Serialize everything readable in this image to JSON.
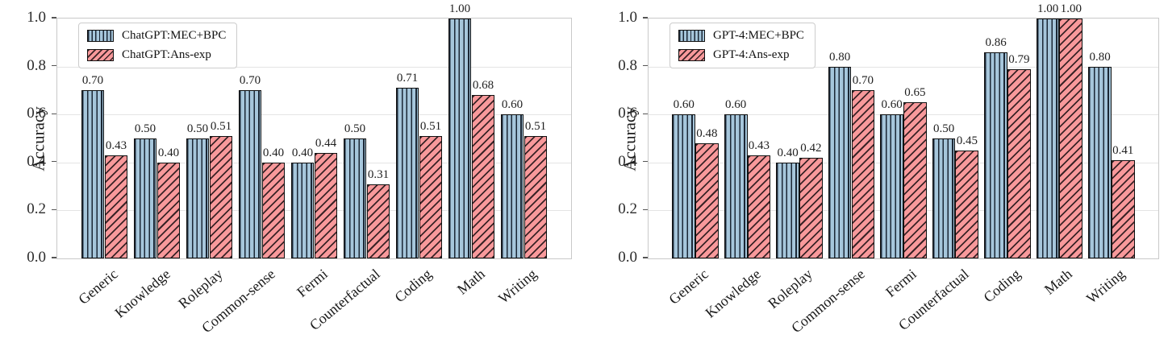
{
  "colors": {
    "series1_fill": "#a6c6db",
    "series1_hatch": "#1b2735",
    "series2_fill": "#f8999b",
    "series2_hatch": "#3a2326",
    "bar_edge": "#111111",
    "grid": "#e4e4e4",
    "frame": "#c9c9c9",
    "text": "#1a1a1a",
    "background": "#ffffff"
  },
  "chart_data": [
    {
      "type": "bar",
      "title": "",
      "xlabel": "",
      "ylabel": "Accuracy",
      "ylim": [
        0,
        1.0
      ],
      "yticks": [
        "0.0",
        "0.2",
        "0.4",
        "0.6",
        "0.8",
        "1.0"
      ],
      "grid": "horizontal",
      "legend_position": "upper-left",
      "hatches": [
        "|",
        "/"
      ],
      "categories": [
        "Generic",
        "Knowledge",
        "Roleplay",
        "Common-sense",
        "Fermi",
        "Counterfactual",
        "Coding",
        "Math",
        "Writing"
      ],
      "series": [
        {
          "name": "ChatGPT:MEC+BPC",
          "values": [
            0.7,
            0.5,
            0.5,
            0.7,
            0.4,
            0.5,
            0.71,
            1.0,
            0.6
          ],
          "labels": [
            "0.70",
            "0.50",
            "0.50",
            "0.70",
            "0.40",
            "0.50",
            "0.71",
            "1.00",
            "0.60"
          ]
        },
        {
          "name": "ChatGPT:Ans-exp",
          "values": [
            0.43,
            0.4,
            0.51,
            0.4,
            0.44,
            0.31,
            0.51,
            0.68,
            0.51
          ],
          "labels": [
            "0.43",
            "0.40",
            "0.51",
            "0.40",
            "0.44",
            "0.31",
            "0.51",
            "0.68",
            "0.51"
          ]
        }
      ]
    },
    {
      "type": "bar",
      "title": "",
      "xlabel": "",
      "ylabel": "Accuracy",
      "ylim": [
        0,
        1.0
      ],
      "yticks": [
        "0.0",
        "0.2",
        "0.4",
        "0.6",
        "0.8",
        "1.0"
      ],
      "grid": "horizontal",
      "legend_position": "upper-left",
      "hatches": [
        "|",
        "/"
      ],
      "categories": [
        "Generic",
        "Knowledge",
        "Roleplay",
        "Common-sense",
        "Fermi",
        "Counterfactual",
        "Coding",
        "Math",
        "Writing"
      ],
      "series": [
        {
          "name": "GPT-4:MEC+BPC",
          "values": [
            0.6,
            0.6,
            0.4,
            0.8,
            0.6,
            0.5,
            0.86,
            1.0,
            0.8
          ],
          "labels": [
            "0.60",
            "0.60",
            "0.40",
            "0.80",
            "0.60",
            "0.50",
            "0.86",
            "1.00",
            "0.80"
          ]
        },
        {
          "name": "GPT-4:Ans-exp",
          "values": [
            0.48,
            0.43,
            0.42,
            0.7,
            0.65,
            0.45,
            0.79,
            1.0,
            0.41
          ],
          "labels": [
            "0.48",
            "0.43",
            "0.42",
            "0.70",
            "0.65",
            "0.45",
            "0.79",
            "1.00",
            "0.41"
          ]
        }
      ]
    }
  ]
}
